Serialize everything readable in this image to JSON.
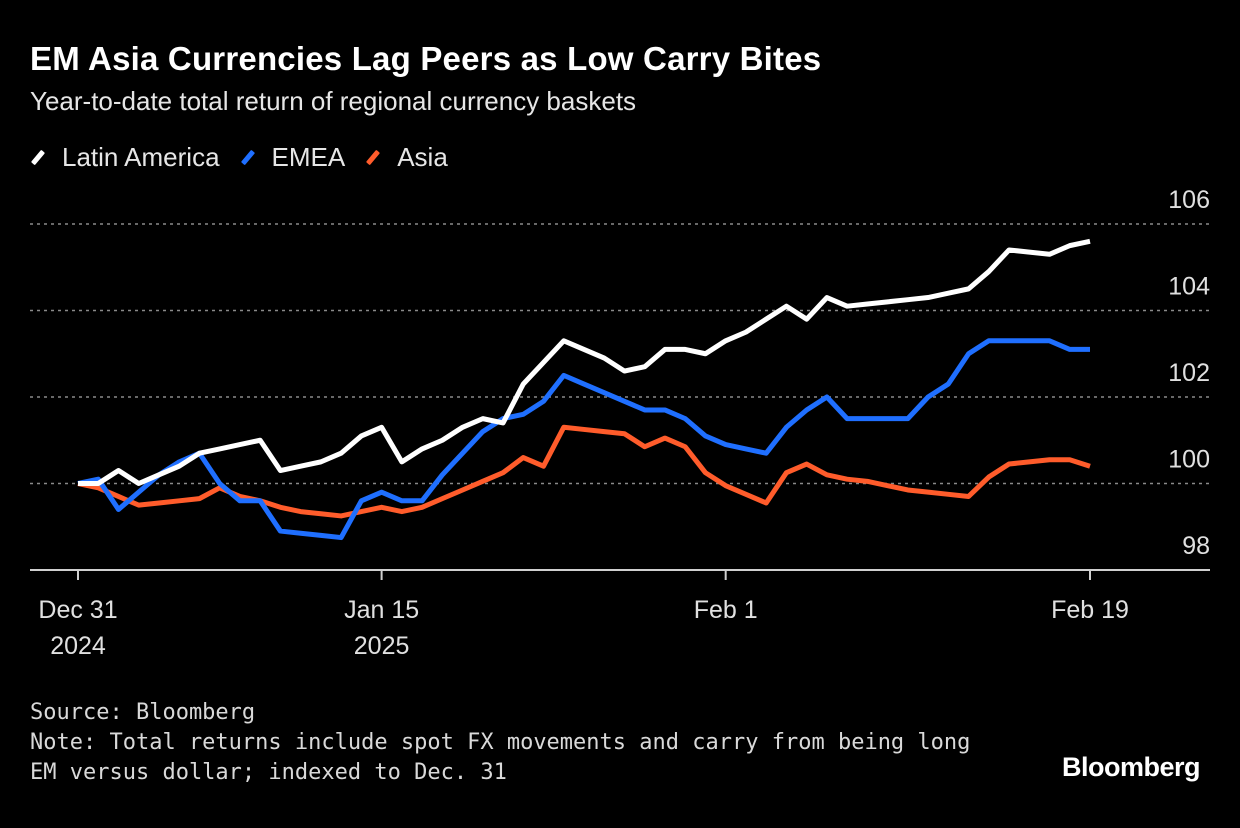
{
  "title": "EM Asia Currencies Lag Peers as Low Carry Bites",
  "subtitle": "Year-to-date total return of regional currency baskets",
  "legend": [
    {
      "label": "Latin America",
      "color": "#ffffff"
    },
    {
      "label": "EMEA",
      "color": "#1f6fff"
    },
    {
      "label": "Asia",
      "color": "#ff5c2b"
    }
  ],
  "footer": {
    "source": "Source: Bloomberg",
    "note_line1": "Note: Total returns include spot FX movements and carry from being long",
    "note_line2": "EM versus dollar; indexed to Dec. 31"
  },
  "brand": "Bloomberg",
  "chart_data": {
    "type": "line",
    "title": "EM Asia Currencies Lag Peers as Low Carry Bites",
    "subtitle": "Year-to-date total return of regional currency baskets",
    "xlabel": "",
    "ylabel": "",
    "ylim": [
      98,
      106
    ],
    "xlim": [
      0,
      55
    ],
    "yticks": [
      98,
      100,
      102,
      104,
      106
    ],
    "xticks": [
      {
        "day": 0,
        "label1": "Dec 31",
        "label2": "2024"
      },
      {
        "day": 15,
        "label1": "Jan 15",
        "label2": "2025"
      },
      {
        "day": 32,
        "label1": "Feb 1",
        "label2": ""
      },
      {
        "day": 50,
        "label1": "Feb 19",
        "label2": ""
      }
    ],
    "grid": true,
    "legend_position": "top-left",
    "x": [
      0,
      1,
      2,
      3,
      4,
      5,
      6,
      7,
      8,
      9,
      10,
      11,
      12,
      13,
      14,
      15,
      16,
      17,
      18,
      19,
      20,
      21,
      22,
      23,
      24,
      25,
      26,
      27,
      28,
      29,
      30,
      31,
      32,
      33,
      34,
      35,
      36,
      37,
      38,
      39,
      40,
      41,
      42,
      43,
      44,
      45,
      46,
      47,
      48,
      49,
      50
    ],
    "series": [
      {
        "name": "Latin America",
        "color": "#ffffff",
        "values": [
          100,
          100,
          100.3,
          100,
          100.2,
          100.4,
          100.7,
          100.8,
          100.9,
          101,
          100.3,
          100.4,
          100.5,
          100.7,
          101.1,
          101.3,
          100.5,
          100.8,
          101.0,
          101.3,
          101.5,
          101.4,
          102.3,
          102.8,
          103.3,
          103.1,
          102.9,
          102.6,
          102.7,
          103.1,
          103.1,
          103.0,
          103.3,
          103.5,
          103.8,
          104.1,
          103.8,
          104.3,
          104.1,
          104.15,
          104.2,
          104.25,
          104.3,
          104.4,
          104.5,
          104.9,
          105.4,
          105.35,
          105.3,
          105.5,
          105.6
        ]
      },
      {
        "name": "EMEA",
        "color": "#1f6fff",
        "values": [
          100,
          100.1,
          99.4,
          99.8,
          100.2,
          100.5,
          100.7,
          100,
          99.6,
          99.6,
          98.9,
          98.85,
          98.8,
          98.75,
          99.6,
          99.8,
          99.6,
          99.6,
          100.2,
          100.7,
          101.2,
          101.5,
          101.6,
          101.9,
          102.5,
          102.3,
          102.1,
          101.9,
          101.7,
          101.7,
          101.5,
          101.1,
          100.9,
          100.8,
          100.7,
          101.3,
          101.7,
          102.0,
          101.5,
          101.5,
          101.5,
          101.5,
          102.0,
          102.3,
          103.0,
          103.3,
          103.3,
          103.3,
          103.3,
          103.1,
          103.1
        ]
      },
      {
        "name": "Asia",
        "color": "#ff5c2b",
        "values": [
          100,
          99.9,
          99.7,
          99.5,
          99.55,
          99.6,
          99.65,
          99.9,
          99.7,
          99.6,
          99.45,
          99.35,
          99.3,
          99.25,
          99.35,
          99.45,
          99.35,
          99.45,
          99.65,
          99.85,
          100.05,
          100.25,
          100.6,
          100.4,
          101.3,
          101.25,
          101.2,
          101.15,
          100.85,
          101.05,
          100.85,
          100.25,
          99.95,
          99.75,
          99.55,
          100.25,
          100.45,
          100.2,
          100.1,
          100.05,
          99.95,
          99.85,
          99.8,
          99.75,
          99.7,
          100.15,
          100.45,
          100.5,
          100.55,
          100.55,
          100.4
        ]
      }
    ]
  }
}
